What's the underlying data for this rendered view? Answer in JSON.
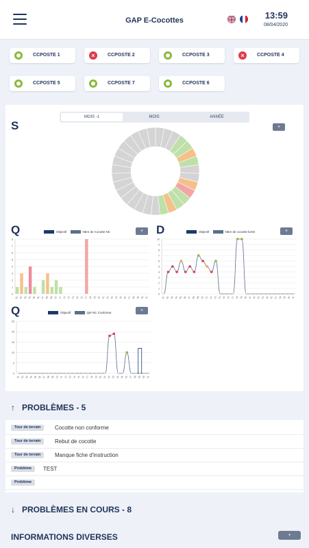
{
  "header": {
    "title": "GAP E-Cocottes",
    "time": "13:59",
    "date": "08/04/2020"
  },
  "postes": [
    {
      "label": "CCPOSTE 1",
      "status": "ok"
    },
    {
      "label": "CCPOSTE 2",
      "status": "ko"
    },
    {
      "label": "CCPOSTE 3",
      "status": "ok"
    },
    {
      "label": "CCPOSTE 4",
      "status": "ko"
    },
    {
      "label": "CCPOSTE 5",
      "status": "ok"
    },
    {
      "label": "CCPOSTE 7",
      "status": "ok"
    },
    {
      "label": "CCPOSTE 6",
      "status": "ok"
    }
  ],
  "period_tabs": [
    {
      "label": "MOIS -1",
      "active": true
    },
    {
      "label": "MOIS",
      "active": false
    },
    {
      "label": "ANNÉE",
      "active": false
    }
  ],
  "charts": {
    "s_letter": "S",
    "q_letter": "Q",
    "d_letter": "D",
    "q2_letter": "Q",
    "plus": "+"
  },
  "chart_data": [
    {
      "type": "pie",
      "title": "S",
      "segments": 31,
      "colors": [
        "#d4d4d4",
        "#d4d4d4",
        "#d4d4d4",
        "#bfe0a8",
        "#bfe0a8",
        "#f5c08a",
        "#bfe0a8",
        "#d4d4d4",
        "#d4d4d4",
        "#f5c08a",
        "#f2a5a5",
        "#bfe0a8",
        "#bfe0a8",
        "#f5c08a",
        "#bfe0a8",
        "#d4d4d4",
        "#d4d4d4",
        "#d4d4d4",
        "#d4d4d4",
        "#d4d4d4",
        "#d4d4d4",
        "#d4d4d4",
        "#d4d4d4",
        "#d4d4d4",
        "#d4d4d4",
        "#d4d4d4",
        "#d4d4d4",
        "#d4d4d4",
        "#d4d4d4",
        "#d4d4d4",
        "#d4d4d4"
      ]
    },
    {
      "type": "bar",
      "title": "Q",
      "legend": [
        "Objectif",
        "Nbre de Cocotte NC"
      ],
      "legend_colors": [
        "#1a3a6a",
        "#5a6f8c"
      ],
      "ylim": [
        0,
        8
      ],
      "yticks": [
        0,
        1,
        2,
        3,
        4,
        5,
        6,
        7,
        8
      ],
      "xticks": [
        "01",
        "02",
        "03",
        "04",
        "05",
        "06",
        "07",
        "08",
        "09",
        "10",
        "11",
        "12",
        "13",
        "14",
        "15",
        "16",
        "17",
        "18",
        "19",
        "20",
        "21",
        "22",
        "23",
        "24",
        "25",
        "26",
        "27",
        "28",
        "29",
        "30",
        "31"
      ],
      "values": [
        1,
        3,
        1,
        4,
        1,
        0,
        2,
        3,
        1,
        2,
        1,
        0,
        0,
        0,
        0,
        0,
        8,
        0,
        0,
        0,
        0,
        0,
        0,
        0,
        0,
        0,
        0,
        0,
        0,
        0,
        0
      ],
      "colors": [
        "#bfe0a8",
        "#f5c08a",
        "#bfe0a8",
        "#f08a9a",
        "#bfe0a8",
        "#d4d4d4",
        "#bfe0a8",
        "#f5c08a",
        "#bfe0a8",
        "#bfe0a8",
        "#bfe0a8",
        "#d4d4d4",
        "#d4d4d4",
        "#d4d4d4",
        "#d4d4d4",
        "#d4d4d4",
        "#f2a5a5",
        "#d4d4d4",
        "#d4d4d4",
        "#d4d4d4",
        "#d4d4d4",
        "#d4d4d4",
        "#d4d4d4",
        "#d4d4d4",
        "#d4d4d4",
        "#d4d4d4",
        "#d4d4d4",
        "#d4d4d4",
        "#d4d4d4",
        "#d4d4d4",
        "#d4d4d4"
      ]
    },
    {
      "type": "line",
      "title": "D",
      "legend": [
        "Objectif",
        "Nbre de cocotte livrée"
      ],
      "legend_colors": [
        "#1a3a6a",
        "#5a6f8c"
      ],
      "ylim": [
        0,
        10
      ],
      "yticks": [
        0,
        1,
        2,
        3,
        4,
        5,
        6,
        7,
        8,
        9,
        10
      ],
      "xticks": [
        "01",
        "02",
        "03",
        "04",
        "05",
        "06",
        "07",
        "08",
        "09",
        "10",
        "11",
        "12",
        "13",
        "14",
        "15",
        "16",
        "17",
        "18",
        "19",
        "20",
        "21",
        "22",
        "23",
        "24",
        "25",
        "26",
        "27",
        "28",
        "29",
        "30",
        "31"
      ],
      "values": [
        0,
        4,
        5,
        4,
        6,
        4,
        5,
        4,
        7,
        6,
        5,
        4,
        6,
        0,
        0,
        0,
        0,
        10,
        10,
        0,
        0,
        0,
        0,
        0,
        0,
        0,
        0,
        0,
        0,
        0,
        0
      ],
      "colors": [
        "#d4d4d4",
        "#e03a4d",
        "#e03a4d",
        "#e03a4d",
        "#f5a04a",
        "#e03a4d",
        "#e03a4d",
        "#e03a4d",
        "#8bb93d",
        "#e03a4d",
        "#f5a04a",
        "#e03a4d",
        "#8bb93d",
        "#d4d4d4",
        "#d4d4d4",
        "#d4d4d4",
        "#d4d4d4",
        "#8bb93d",
        "#8bb93d",
        "#d4d4d4",
        "#d4d4d4",
        "#d4d4d4",
        "#d4d4d4",
        "#d4d4d4",
        "#d4d4d4",
        "#d4d4d4",
        "#d4d4d4",
        "#d4d4d4",
        "#d4d4d4",
        "#d4d4d4",
        "#d4d4d4"
      ]
    },
    {
      "type": "line",
      "title": "Q",
      "legend": [
        "Objectif",
        "Qté NC Conforme"
      ],
      "legend_colors": [
        "#1a3a6a",
        "#5a6f8c"
      ],
      "ylim": [
        0,
        25
      ],
      "yticks": [
        0,
        5,
        10,
        15,
        20,
        25
      ],
      "xticks": [
        "01",
        "02",
        "03",
        "04",
        "05",
        "06",
        "07",
        "08",
        "09",
        "10",
        "11",
        "12",
        "13",
        "14",
        "15",
        "16",
        "17",
        "18",
        "19",
        "20",
        "21",
        "22",
        "23",
        "24",
        "25",
        "26",
        "27",
        "28",
        "29",
        "30",
        "31"
      ],
      "values": [
        0,
        0,
        0,
        0,
        0,
        0,
        0,
        0,
        0,
        0,
        0,
        0,
        0,
        0,
        0,
        0,
        0,
        0,
        0,
        0,
        0,
        18,
        19,
        0,
        0,
        10,
        0,
        0,
        0,
        0,
        0
      ],
      "colors": [
        "#d4d4d4",
        "#d4d4d4",
        "#d4d4d4",
        "#d4d4d4",
        "#d4d4d4",
        "#d4d4d4",
        "#d4d4d4",
        "#d4d4d4",
        "#d4d4d4",
        "#d4d4d4",
        "#d4d4d4",
        "#d4d4d4",
        "#d4d4d4",
        "#d4d4d4",
        "#d4d4d4",
        "#d4d4d4",
        "#d4d4d4",
        "#d4d4d4",
        "#d4d4d4",
        "#d4d4d4",
        "#d4d4d4",
        "#e03a4d",
        "#e03a4d",
        "#d4d4d4",
        "#d4d4d4",
        "#8bb93d",
        "#d4d4d4",
        "#d4d4d4",
        "#d4d4d4",
        "#d4d4d4",
        "#d4d4d4"
      ],
      "objective_bar": {
        "x": 29,
        "value": 12
      }
    }
  ],
  "problemes": {
    "title": "PROBLÈMES - 5",
    "items": [
      {
        "tag": "Tour de terrain",
        "text": "Cocotte non conforme"
      },
      {
        "tag": "Tour de terrain",
        "text": "Rebut de cocotte"
      },
      {
        "tag": "Tour de terrain",
        "text": "Manque fiche d'instruction"
      },
      {
        "tag": "Problème",
        "text": "TEST"
      },
      {
        "tag": "Problème",
        "text": ""
      }
    ]
  },
  "problemes_en_cours": {
    "title": "PROBLÈMES EN COURS - 8"
  },
  "informations": {
    "title": "INFORMATIONS DIVERSES",
    "button": "+"
  }
}
